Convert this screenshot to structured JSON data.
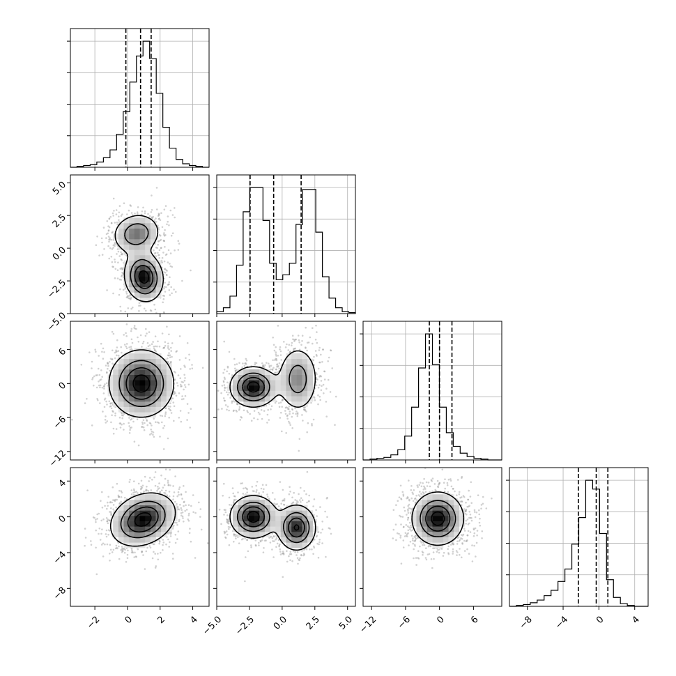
{
  "chart_data": {
    "type": "corner",
    "title": "",
    "n_params": 4,
    "colors": {
      "ink": "#000000",
      "grid": "#b0b0b0",
      "scatter": "#9a9a9a"
    },
    "grid": true,
    "parameters": [
      {
        "label": "",
        "range": [
          -3.5,
          5.0
        ],
        "ticks": [
          -2,
          0,
          2,
          4
        ],
        "tick_labels": [
          "−2",
          "0",
          "2",
          "4"
        ],
        "quantiles": [
          -0.1,
          0.8,
          1.45
        ]
      },
      {
        "label": "",
        "range": [
          -5.0,
          5.6
        ],
        "ticks": [
          -5.0,
          -2.5,
          0.0,
          2.5,
          5.0
        ],
        "tick_labels": [
          "−5.0",
          "−2.5",
          "0.0",
          "2.5",
          "5.0"
        ],
        "quantiles": [
          -2.45,
          -0.65,
          1.45
        ]
      },
      {
        "label": "",
        "range": [
          -13.5,
          11.0
        ],
        "ticks": [
          -12,
          -6,
          0,
          6
        ],
        "tick_labels": [
          "−12",
          "−6",
          "0",
          "6"
        ],
        "quantiles": [
          -1.8,
          0.0,
          2.2
        ]
      },
      {
        "label": "",
        "range": [
          -10.0,
          5.5
        ],
        "ticks": [
          -8,
          -4,
          0,
          4
        ],
        "tick_labels": [
          "−8",
          "−4",
          "0",
          "4"
        ],
        "quantiles": [
          -2.3,
          -0.3,
          1.0
        ]
      }
    ],
    "histograms": [
      {
        "param": 0,
        "bin_edges_range": [
          -3.5,
          5.0
        ],
        "counts": [
          0,
          1,
          2,
          3,
          6,
          11,
          20,
          38,
          64,
          98,
          128,
          145,
          125,
          85,
          46,
          22,
          9,
          4,
          2,
          1,
          0
        ]
      },
      {
        "param": 1,
        "bin_edges_range": [
          -5.0,
          5.6
        ],
        "counts": [
          2,
          6,
          18,
          50,
          105,
          130,
          130,
          96,
          52,
          35,
          40,
          52,
          92,
          128,
          128,
          84,
          38,
          16,
          6,
          2,
          1
        ]
      },
      {
        "param": 2,
        "bin_edges_range": [
          -13.5,
          11.0
        ],
        "counts": [
          0,
          1,
          2,
          3,
          6,
          12,
          28,
          62,
          108,
          148,
          112,
          62,
          32,
          16,
          8,
          4,
          2,
          1,
          0,
          0
        ]
      },
      {
        "param": 3,
        "bin_edges_range": [
          -10.0,
          5.5
        ],
        "counts": [
          0,
          1,
          2,
          4,
          7,
          12,
          18,
          28,
          42,
          70,
          100,
          142,
          132,
          82,
          30,
          10,
          3,
          1,
          0,
          0
        ]
      }
    ],
    "pairs": [
      {
        "x": 0,
        "y": 1,
        "modes": [
          {
            "x": 0.55,
            "y": 1.1,
            "sx": 0.75,
            "sy": 0.8,
            "w": 0.4,
            "rho": 0.1
          },
          {
            "x": 1.0,
            "y": -2.2,
            "sx": 0.6,
            "sy": 0.95,
            "w": 0.6,
            "rho": -0.1
          }
        ]
      },
      {
        "x": 0,
        "y": 2,
        "modes": [
          {
            "x": 0.85,
            "y": 0.0,
            "sx": 1.0,
            "sy": 3.0,
            "w": 1.0,
            "rho": 0.0
          }
        ]
      },
      {
        "x": 1,
        "y": 2,
        "modes": [
          {
            "x": -2.2,
            "y": -0.6,
            "sx": 0.9,
            "sy": 1.8,
            "w": 0.55,
            "rho": 0.0
          },
          {
            "x": 1.2,
            "y": 0.8,
            "sx": 0.8,
            "sy": 3.0,
            "w": 0.45,
            "rho": 0.0
          }
        ]
      },
      {
        "x": 0,
        "y": 3,
        "modes": [
          {
            "x": 0.95,
            "y": -0.3,
            "sx": 1.0,
            "sy": 1.5,
            "w": 1.0,
            "rho": 0.25
          }
        ]
      },
      {
        "x": 1,
        "y": 3,
        "modes": [
          {
            "x": -2.2,
            "y": 0.0,
            "sx": 0.9,
            "sy": 1.2,
            "w": 0.55,
            "rho": 0.0
          },
          {
            "x": 1.1,
            "y": -1.2,
            "sx": 0.75,
            "sy": 1.3,
            "w": 0.45,
            "rho": 0.0
          }
        ]
      },
      {
        "x": 2,
        "y": 3,
        "modes": [
          {
            "x": -0.3,
            "y": -0.2,
            "sx": 2.3,
            "sy": 1.5,
            "w": 1.0,
            "rho": 0.0
          }
        ]
      }
    ]
  }
}
